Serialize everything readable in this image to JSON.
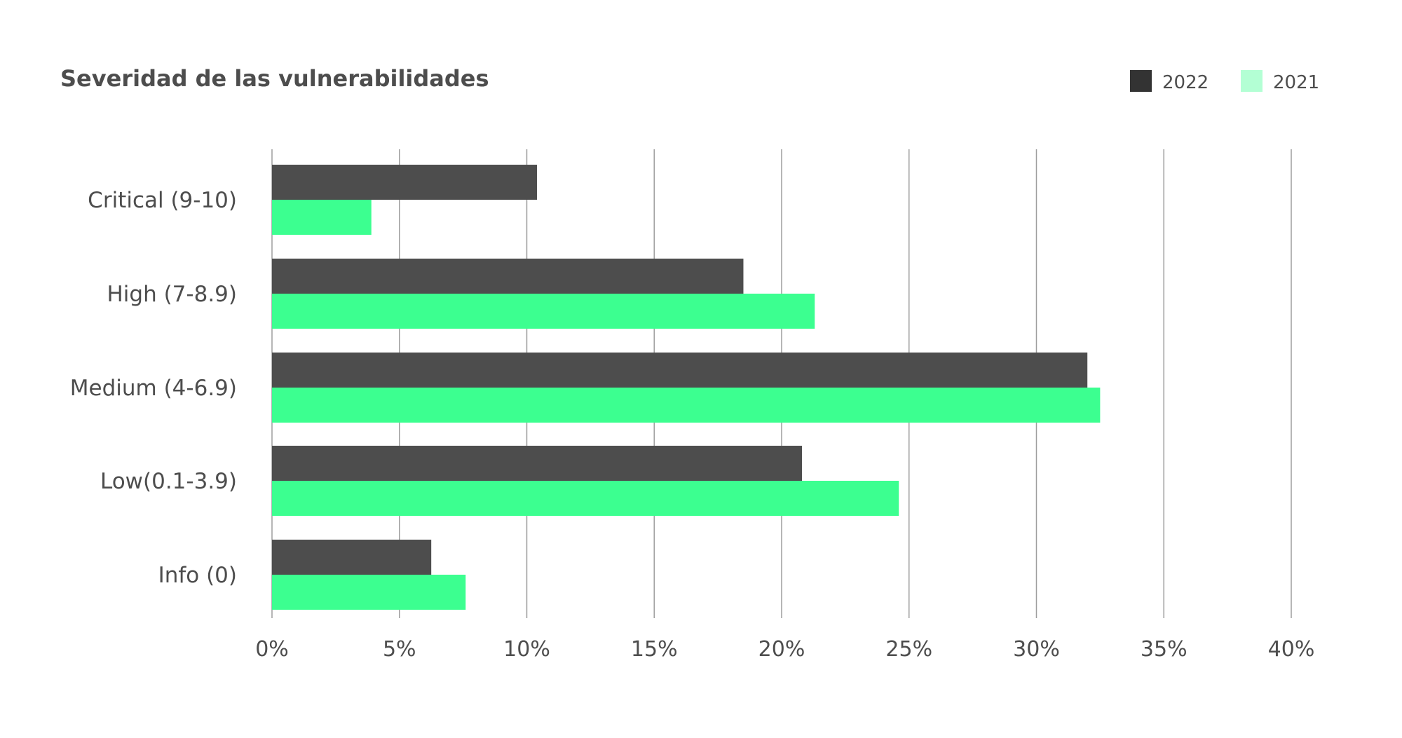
{
  "chart_data": {
    "type": "bar",
    "orientation": "horizontal",
    "title": "Severidad de las vulnerabilidades",
    "xlabel": "",
    "ylabel": "",
    "categories": [
      "Critical (9-10)",
      "High (7-8.9)",
      "Medium (4-6.9)",
      "Low(0.1-3.9)",
      "Info (0)"
    ],
    "series": [
      {
        "name": "2022",
        "color": "#4d4d4d",
        "values": [
          10.4,
          18.5,
          32.0,
          20.8,
          6.25
        ]
      },
      {
        "name": "2021",
        "color": "#3cff90",
        "values": [
          3.9,
          21.3,
          32.5,
          24.6,
          7.6
        ]
      }
    ],
    "legend_swatches": {
      "2022": "#333333",
      "2021": "#b3ffd4"
    },
    "xlim": [
      0,
      40
    ],
    "xticks": [
      0,
      5,
      10,
      15,
      20,
      25,
      30,
      35,
      40
    ],
    "xtick_labels": [
      "0%",
      "5%",
      "10%",
      "15%",
      "20%",
      "25%",
      "30%",
      "35%",
      "40%"
    ],
    "grid": "vertical",
    "legend_position": "top-right",
    "colors": {
      "title": "#4d4d4d",
      "labels": "#4d4d4d",
      "grid": "#9e9e9e"
    }
  }
}
